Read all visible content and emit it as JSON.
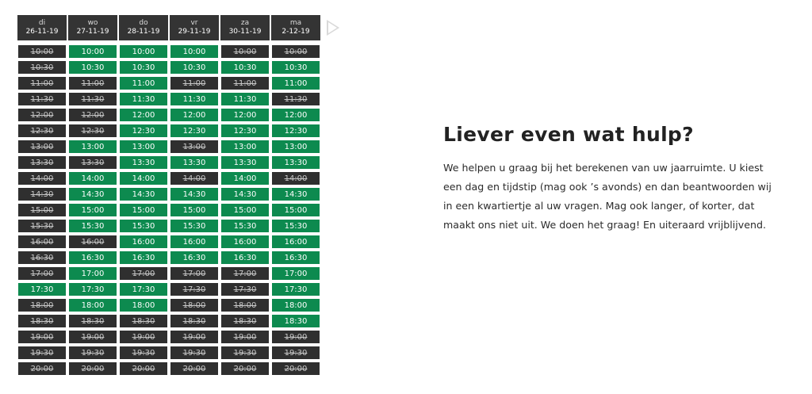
{
  "days": [
    {
      "name": "di",
      "date": "26-11-19"
    },
    {
      "name": "wo",
      "date": "27-11-19"
    },
    {
      "name": "do",
      "date": "28-11-19"
    },
    {
      "name": "vr",
      "date": "29-11-19"
    },
    {
      "name": "za",
      "date": "30-11-19"
    },
    {
      "name": "ma",
      "date": "2-12-19"
    }
  ],
  "times": [
    "10:00",
    "10:30",
    "11:00",
    "11:30",
    "12:00",
    "12:30",
    "13:00",
    "13:30",
    "14:00",
    "14:30",
    "15:00",
    "15:30",
    "16:00",
    "16:30",
    "17:00",
    "17:30",
    "18:00",
    "18:30",
    "19:00",
    "19:30",
    "20:00"
  ],
  "availability": [
    [
      0,
      1,
      1,
      1,
      0,
      0
    ],
    [
      0,
      1,
      1,
      1,
      1,
      1
    ],
    [
      0,
      0,
      1,
      0,
      0,
      1
    ],
    [
      0,
      0,
      1,
      1,
      1,
      0
    ],
    [
      0,
      0,
      1,
      1,
      1,
      1
    ],
    [
      0,
      0,
      1,
      1,
      1,
      1
    ],
    [
      0,
      1,
      1,
      0,
      1,
      1
    ],
    [
      0,
      0,
      1,
      1,
      1,
      1
    ],
    [
      0,
      1,
      1,
      0,
      1,
      0
    ],
    [
      0,
      1,
      1,
      1,
      1,
      1
    ],
    [
      0,
      1,
      1,
      1,
      1,
      1
    ],
    [
      0,
      1,
      1,
      1,
      1,
      1
    ],
    [
      0,
      0,
      1,
      1,
      1,
      1
    ],
    [
      0,
      1,
      1,
      1,
      1,
      1
    ],
    [
      0,
      1,
      0,
      0,
      0,
      1
    ],
    [
      1,
      1,
      1,
      0,
      0,
      1
    ],
    [
      0,
      1,
      1,
      0,
      0,
      1
    ],
    [
      0,
      0,
      0,
      0,
      0,
      1
    ],
    [
      0,
      0,
      0,
      0,
      0,
      0
    ],
    [
      0,
      0,
      0,
      0,
      0,
      0
    ],
    [
      0,
      0,
      0,
      0,
      0,
      0
    ]
  ],
  "colors": {
    "available": "#0d8a4f",
    "unavailable": "#2f2f2f"
  },
  "icons": {
    "next": "chevron-right-icon"
  },
  "help": {
    "title": "Liever even wat hulp?",
    "text": "We helpen u graag bij het berekenen van uw jaarruimte.  U kiest een dag en tijdstip (mag ook ’s avonds) en dan beantwoorden wij in een kwartiertje al uw vragen. Mag ook langer, of korter, dat maakt ons niet uit. We doen het graag! En uiteraard vrijblijvend."
  }
}
